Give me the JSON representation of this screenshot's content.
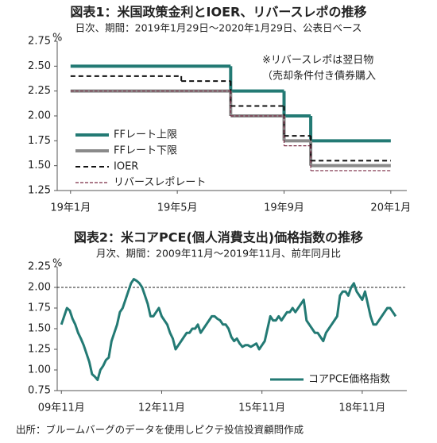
{
  "chart_data": [
    {
      "type": "step",
      "title": "図表1：米国政策金利とIOER、リバースレポの推移",
      "subtitle": "日次、期間：2019年1月29日～2020年1月29日、公表日ベース",
      "y_unit": "%",
      "annotations": [
        "※リバースレポは翌日物",
        "（売却条件付き債券購入"
      ],
      "xlim": [
        -0.5,
        12.6
      ],
      "xticks": [
        {
          "value": 0,
          "label": "19年1月"
        },
        {
          "value": 4,
          "label": "19年5月"
        },
        {
          "value": 8,
          "label": "19年9月"
        },
        {
          "value": 12,
          "label": "20年1月"
        }
      ],
      "ylim": [
        1.25,
        2.75
      ],
      "yticks": [
        1.25,
        {
          "value": 1.5,
          "label": "1.50"
        },
        1.75,
        {
          "value": 2.0,
          "label": "2.00"
        },
        2.25,
        {
          "value": 2.5,
          "label": "2.50"
        },
        2.75
      ],
      "legend": "center left",
      "series": [
        {
          "name": "FFレート上限",
          "color": "#237a74",
          "width": 4,
          "dash": "none",
          "x": [
            0,
            6,
            8,
            9,
            12
          ],
          "values": [
            2.5,
            2.25,
            2.0,
            1.75,
            1.75
          ]
        },
        {
          "name": "FFレート下限",
          "color": "#8a8a8a",
          "width": 4,
          "dash": "none",
          "x": [
            0,
            6,
            8,
            9,
            12
          ],
          "values": [
            2.25,
            2.0,
            1.75,
            1.5,
            1.5
          ]
        },
        {
          "name": "IOER",
          "color": "#111111",
          "width": 2,
          "dash": "6 4",
          "x": [
            0,
            4.15,
            6,
            8,
            9,
            12
          ],
          "values": [
            2.4,
            2.35,
            2.1,
            1.8,
            1.55,
            1.55
          ]
        },
        {
          "name": "リバースレポレート",
          "color": "#7a2a44",
          "width": 1.2,
          "dash": "4 2",
          "x": [
            0,
            6,
            8,
            9,
            12
          ],
          "values": [
            2.25,
            2.0,
            1.7,
            1.45,
            1.45
          ]
        }
      ]
    },
    {
      "type": "line",
      "title": "図表2：米コアPCE(個人消費支出)価格指数の推移",
      "subtitle": "月次、期間：2009年11月～2019年11月、前年同月比",
      "y_unit": "%",
      "reference_line": 2.0,
      "xlim": [
        -1.5,
        124
      ],
      "xticks": [
        {
          "value": 0,
          "label": "09年11月"
        },
        {
          "value": 36,
          "label": "12年11月"
        },
        {
          "value": 72,
          "label": "15年11月"
        },
        {
          "value": 108,
          "label": "18年11月"
        }
      ],
      "ylim": [
        0.75,
        2.25
      ],
      "yticks": [
        0.75,
        {
          "value": 1.0,
          "label": "1.00"
        },
        1.25,
        {
          "value": 1.5,
          "label": "1.50"
        },
        1.75,
        {
          "value": 2.0,
          "label": "2.00"
        },
        2.25
      ],
      "legend": "lower right",
      "x": [
        0,
        1,
        2,
        3,
        4,
        5,
        6,
        7,
        8,
        9,
        10,
        11,
        12,
        13,
        14,
        15,
        16,
        17,
        18,
        19,
        20,
        21,
        22,
        23,
        24,
        25,
        26,
        27,
        28,
        29,
        30,
        31,
        32,
        33,
        34,
        35,
        36,
        37,
        38,
        39,
        40,
        41,
        42,
        43,
        44,
        45,
        46,
        47,
        48,
        49,
        50,
        51,
        52,
        53,
        54,
        55,
        56,
        57,
        58,
        59,
        60,
        61,
        62,
        63,
        64,
        65,
        66,
        67,
        68,
        69,
        70,
        71,
        72,
        73,
        74,
        75,
        76,
        77,
        78,
        79,
        80,
        81,
        82,
        83,
        84,
        85,
        86,
        87,
        88,
        89,
        90,
        91,
        92,
        93,
        94,
        95,
        96,
        97,
        98,
        99,
        100,
        101,
        102,
        103,
        104,
        105,
        106,
        107,
        108,
        109,
        110,
        111,
        112,
        113,
        114,
        115,
        116,
        117,
        118,
        119,
        120
      ],
      "series": [
        {
          "name": "コアPCE価格指数",
          "color": "#237a74",
          "values": [
            1.55,
            1.65,
            1.75,
            1.72,
            1.62,
            1.55,
            1.45,
            1.38,
            1.3,
            1.2,
            1.1,
            0.95,
            0.92,
            0.88,
            1.0,
            1.05,
            1.12,
            1.15,
            1.35,
            1.45,
            1.55,
            1.7,
            1.75,
            1.85,
            1.95,
            2.05,
            2.1,
            2.08,
            2.05,
            2.0,
            1.9,
            1.8,
            1.65,
            1.65,
            1.7,
            1.75,
            1.65,
            1.6,
            1.55,
            1.45,
            1.38,
            1.25,
            1.3,
            1.35,
            1.4,
            1.45,
            1.45,
            1.5,
            1.5,
            1.55,
            1.45,
            1.5,
            1.55,
            1.6,
            1.65,
            1.65,
            1.62,
            1.6,
            1.55,
            1.55,
            1.5,
            1.4,
            1.35,
            1.38,
            1.32,
            1.28,
            1.3,
            1.3,
            1.28,
            1.3,
            1.32,
            1.25,
            1.3,
            1.35,
            1.5,
            1.65,
            1.6,
            1.6,
            1.65,
            1.6,
            1.65,
            1.7,
            1.7,
            1.75,
            1.7,
            1.75,
            1.8,
            1.85,
            1.6,
            1.55,
            1.5,
            1.45,
            1.45,
            1.4,
            1.35,
            1.45,
            1.5,
            1.55,
            1.6,
            1.65,
            1.9,
            1.95,
            1.95,
            1.9,
            2.0,
            2.05,
            1.95,
            1.9,
            1.85,
            1.95,
            1.8,
            1.65,
            1.55,
            1.55,
            1.6,
            1.65,
            1.7,
            1.75,
            1.75,
            1.7,
            1.65
          ]
        }
      ]
    }
  ],
  "source": "出所：ブルームバーグのデータを使用しピクテ投信投資顧問作成"
}
